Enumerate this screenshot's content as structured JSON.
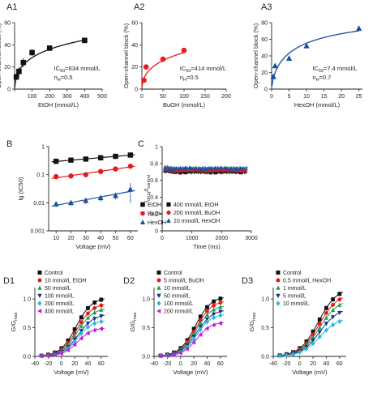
{
  "chart_data": [
    {
      "panel": "A1",
      "type": "scatter",
      "xlabel": "EtOH (mmol/L)",
      "ylabel": "Open-channel block (%)",
      "xlim": [
        0,
        500
      ],
      "ylim": [
        0,
        60
      ],
      "xticks": [
        0,
        100,
        200,
        300,
        400,
        500
      ],
      "xticklabels": [
        "",
        "100",
        "200",
        "300",
        "400",
        "500"
      ],
      "yticks": [
        0,
        20,
        40,
        60
      ],
      "yticklabels": [
        "0",
        "20",
        "40",
        "60"
      ],
      "color": "#111111",
      "marker": "square",
      "series": [
        {
          "x": [
            10,
            25,
            50,
            100,
            200,
            400
          ],
          "y": [
            11,
            16,
            24,
            33,
            37,
            44
          ],
          "err": [
            3,
            4,
            4,
            3,
            2,
            2
          ]
        }
      ],
      "fit": {
        "model": "hill",
        "ic50": 634,
        "n": 0.5,
        "ymax": 100
      },
      "annotations": [
        "IC50=634 mmol/L",
        "nH=0.5"
      ]
    },
    {
      "panel": "A2",
      "type": "scatter",
      "xlabel": "BuOH (mmol/L)",
      "ylabel": "Open-channel block (%)",
      "xlim": [
        0,
        200
      ],
      "ylim": [
        0,
        60
      ],
      "xticks": [
        0,
        50,
        100,
        150,
        200
      ],
      "xticklabels": [
        "0",
        "50",
        "100",
        "150",
        "200"
      ],
      "yticks": [
        0,
        20,
        40,
        60
      ],
      "yticklabels": [
        "0",
        "20",
        "40",
        "60"
      ],
      "color": "#e8191b",
      "marker": "circle",
      "series": [
        {
          "x": [
            5,
            10,
            50,
            100
          ],
          "y": [
            8,
            20,
            27,
            35
          ],
          "err": [
            1,
            1,
            1,
            1
          ]
        }
      ],
      "fit": {
        "model": "hill",
        "ic50": 414,
        "n": 0.5,
        "ymax": 100
      },
      "annotations": [
        "IC50=414 mmol/L",
        "nH=0.5"
      ]
    },
    {
      "panel": "A3",
      "type": "scatter",
      "xlabel": "HexOH (mmol/L)",
      "ylabel": "Open-channel block (%)",
      "xlim": [
        0,
        26
      ],
      "ylim": [
        0,
        80
      ],
      "xticks": [
        0,
        5,
        10,
        15,
        20,
        25
      ],
      "xticklabels": [
        "0",
        "5",
        "10",
        "15",
        "20",
        "25"
      ],
      "yticks": [
        0,
        20,
        40,
        60,
        80
      ],
      "yticklabels": [
        "0",
        "20",
        "40",
        "60",
        "80"
      ],
      "color": "#1a4e9e",
      "marker": "triangle",
      "series": [
        {
          "x": [
            0.5,
            1,
            5,
            10,
            25
          ],
          "y": [
            15,
            28,
            37,
            52,
            73
          ],
          "err": [
            2,
            2,
            2,
            2,
            3
          ]
        }
      ],
      "fit": {
        "model": "hill",
        "ic50": 7.4,
        "n": 0.7,
        "ymax": 100
      },
      "annotations": [
        "IC50=7.4 mmol/L",
        "nH=0.7"
      ]
    },
    {
      "panel": "B",
      "type": "scatter",
      "xlabel": "Voltage (mV)",
      "ylabel": "lg (IC50)",
      "xlim": [
        5,
        65
      ],
      "ylim": [
        0.001,
        1
      ],
      "yscale": "log",
      "xticks": [
        10,
        20,
        30,
        40,
        50,
        60
      ],
      "xticklabels": [
        "10",
        "20",
        "30",
        "40",
        "50",
        "60"
      ],
      "yticks": [
        0.001,
        0.01,
        0.1,
        1
      ],
      "yticklabels": [
        "0.001",
        "0.01",
        "0.1",
        "1"
      ],
      "legend_position": "bottom-right",
      "series": [
        {
          "name": "EtOH",
          "color": "#111111",
          "marker": "square",
          "x": [
            10,
            20,
            30,
            40,
            50,
            60
          ],
          "y": [
            0.3,
            0.33,
            0.36,
            0.4,
            0.45,
            0.5
          ],
          "err": [
            0.03,
            0.03,
            0.03,
            0.03,
            0.05,
            0.05
          ]
        },
        {
          "name": "BuOH",
          "color": "#e8191b",
          "marker": "circle",
          "x": [
            10,
            20,
            30,
            40,
            50,
            60
          ],
          "y": [
            0.085,
            0.09,
            0.1,
            0.13,
            0.16,
            0.2
          ],
          "err": [
            0.01,
            0.01,
            0.01,
            0.015,
            0.02,
            0.03
          ]
        },
        {
          "name": "HexOH",
          "color": "#1a4e9e",
          "marker": "triangle",
          "x": [
            10,
            20,
            30,
            40,
            50,
            60
          ],
          "y": [
            0.009,
            0.01,
            0.012,
            0.015,
            0.018,
            0.03
          ],
          "err": [
            0.002,
            0.002,
            0.003,
            0.004,
            0.005,
            0.02
          ]
        }
      ]
    },
    {
      "panel": "C",
      "type": "line",
      "xlabel": "Time (ms)",
      "ylabel": "Idrug/Icontrol",
      "xlim": [
        0,
        3000
      ],
      "ylim": [
        0,
        1
      ],
      "xticks": [
        0,
        1000,
        2000,
        3000
      ],
      "xticklabels": [
        "0",
        "1000",
        "2000",
        "3000"
      ],
      "yticks": [
        0,
        0.2,
        0.4,
        0.6,
        0.8,
        1
      ],
      "yticklabels": [
        "0",
        "0.2",
        "0.4",
        "0.6",
        "0.8",
        "1"
      ],
      "legend_position": "bottom-left",
      "series": [
        {
          "name": "400 mmol/L EtOH",
          "color": "#111111",
          "marker": "square",
          "level": 0.7
        },
        {
          "name": "200 mmol/L BuOH",
          "color": "#e8191b",
          "marker": "circle",
          "level": 0.72
        },
        {
          "name": "10 mmol/L HexOH",
          "color": "#1a4e9e",
          "marker": "triangle",
          "level": 0.74
        }
      ]
    },
    {
      "panel": "D1",
      "type": "scatter",
      "xlabel": "Voltage (mV)",
      "ylabel": "G/Gmax",
      "xlim": [
        -40,
        70
      ],
      "ylim": [
        0,
        1.2
      ],
      "xticks": [
        -40,
        -20,
        0,
        20,
        40,
        60
      ],
      "xticklabels": [
        "-40",
        "-20",
        "0",
        "20",
        "40",
        "60"
      ],
      "yticks": [
        0,
        0.5,
        1
      ],
      "yticklabels": [
        "0.0",
        "0.5",
        "1.0"
      ],
      "legend_position": "top-left",
      "series": [
        {
          "name": "Control",
          "color": "#111111",
          "marker": "square",
          "vhalf": 22,
          "k": 12,
          "gmax": 1.03
        },
        {
          "name": "10 mmol/L EtOH",
          "color": "#e8191b",
          "marker": "circle",
          "vhalf": 23,
          "k": 12,
          "gmax": 0.93
        },
        {
          "name": "50 mmol/L",
          "color": "#1aa24a",
          "marker": "triangle",
          "vhalf": 24,
          "k": 12,
          "gmax": 0.85
        },
        {
          "name": "100 mmol/L",
          "color": "#1a2e8e",
          "marker": "triangle-down",
          "vhalf": 25,
          "k": 12,
          "gmax": 0.74
        },
        {
          "name": "200 mmol/L",
          "color": "#22b8d8",
          "marker": "diamond",
          "vhalf": 24,
          "k": 11,
          "gmax": 0.63
        },
        {
          "name": "400 mmol/L",
          "color": "#c21ad6",
          "marker": "triangle-left",
          "vhalf": 24,
          "k": 11,
          "gmax": 0.5
        }
      ]
    },
    {
      "panel": "D2",
      "type": "scatter",
      "xlabel": "Voltage (mV)",
      "ylabel": "G/Gmax",
      "xlim": [
        -40,
        70
      ],
      "ylim": [
        0,
        1.2
      ],
      "xticks": [
        -40,
        -20,
        0,
        20,
        40,
        60
      ],
      "xticklabels": [
        "-40",
        "-20",
        "0",
        "20",
        "40",
        "60"
      ],
      "yticks": [
        0,
        0.5,
        1
      ],
      "yticklabels": [
        "0.0",
        "0.5",
        "1.0"
      ],
      "legend_position": "top-left",
      "series": [
        {
          "name": "Control",
          "color": "#111111",
          "marker": "square",
          "vhalf": 22,
          "k": 12,
          "gmax": 1.05
        },
        {
          "name": "5 mmol/L BuOH",
          "color": "#e8191b",
          "marker": "circle",
          "vhalf": 23,
          "k": 12,
          "gmax": 0.98
        },
        {
          "name": "10 mmol/L",
          "color": "#1aa24a",
          "marker": "triangle",
          "vhalf": 23,
          "k": 12,
          "gmax": 0.9
        },
        {
          "name": "50 mmol/L",
          "color": "#1a2e8e",
          "marker": "triangle-down",
          "vhalf": 24,
          "k": 12,
          "gmax": 0.82
        },
        {
          "name": "100 mmol/L",
          "color": "#22b8d8",
          "marker": "diamond",
          "vhalf": 24,
          "k": 11,
          "gmax": 0.74
        },
        {
          "name": "200 mmol/L",
          "color": "#c21ad6",
          "marker": "triangle-left",
          "vhalf": 24,
          "k": 11,
          "gmax": 0.6
        }
      ]
    },
    {
      "panel": "D3",
      "type": "scatter",
      "xlabel": "Voltage (mV)",
      "ylabel": "G/Gmax",
      "xlim": [
        -40,
        70
      ],
      "ylim": [
        0,
        1.2
      ],
      "xticks": [
        -40,
        -20,
        0,
        20,
        40,
        60
      ],
      "xticklabels": [
        "-40",
        "-20",
        "0",
        "20",
        "40",
        "60"
      ],
      "yticks": [
        0,
        0.5,
        1
      ],
      "yticklabels": [
        "0.0",
        "0.5",
        "1.0"
      ],
      "legend_position": "top-left",
      "series": [
        {
          "name": "Control",
          "color": "#111111",
          "marker": "square",
          "vhalf": 28,
          "k": 14,
          "gmax": 1.2
        },
        {
          "name": "0.5 mmol/L HexOH",
          "color": "#e8191b",
          "marker": "circle",
          "vhalf": 29,
          "k": 14,
          "gmax": 1.1
        },
        {
          "name": "1 mmol/L",
          "color": "#1aa24a",
          "marker": "triangle",
          "vhalf": 30,
          "k": 14,
          "gmax": 1.0
        },
        {
          "name": "5 mmol/L",
          "color": "#1a2e8e",
          "marker": "triangle-down",
          "vhalf": 30,
          "k": 14,
          "gmax": 0.85
        },
        {
          "name": "10 mmol/L",
          "color": "#22b8d8",
          "marker": "diamond",
          "vhalf": 30,
          "k": 14,
          "gmax": 0.68
        }
      ]
    }
  ]
}
